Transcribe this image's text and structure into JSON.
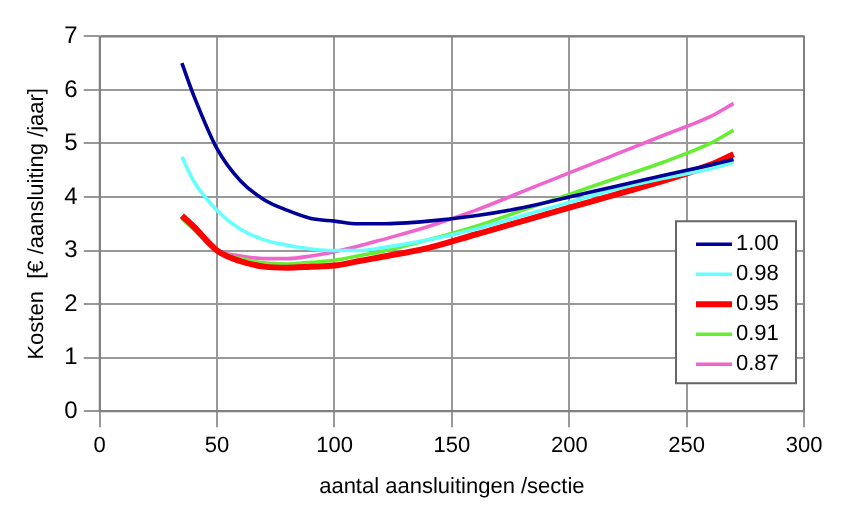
{
  "chart_data": {
    "type": "line",
    "xlabel": "aantal aansluitingen /sectie",
    "ylabel": "Kosten  [€ /aansluiting /jaar]",
    "x": [
      35,
      40,
      50,
      60,
      70,
      80,
      90,
      100,
      110,
      120,
      140,
      160,
      180,
      200,
      220,
      240,
      260,
      270
    ],
    "series": [
      {
        "name": "1.00",
        "color": "#000099",
        "values": [
          6.5,
          5.9,
          4.9,
          4.3,
          3.95,
          3.75,
          3.6,
          3.55,
          3.5,
          3.5,
          3.55,
          3.65,
          3.8,
          4.0,
          4.2,
          4.4,
          4.6,
          4.7
        ]
      },
      {
        "name": "0.98",
        "color": "#66ffff",
        "values": [
          4.75,
          4.3,
          3.75,
          3.4,
          3.2,
          3.1,
          3.03,
          3.0,
          3.0,
          3.05,
          3.2,
          3.4,
          3.65,
          3.9,
          4.15,
          4.35,
          4.53,
          4.65
        ]
      },
      {
        "name": "0.95",
        "color": "#ff0000",
        "values": [
          3.65,
          3.45,
          3.0,
          2.8,
          2.7,
          2.68,
          2.7,
          2.72,
          2.8,
          2.88,
          3.05,
          3.3,
          3.55,
          3.8,
          4.05,
          4.3,
          4.6,
          4.8
        ]
      },
      {
        "name": "0.91",
        "color": "#66ee33",
        "values": [
          3.6,
          3.4,
          3.0,
          2.85,
          2.77,
          2.75,
          2.78,
          2.82,
          2.9,
          2.98,
          3.2,
          3.45,
          3.75,
          4.05,
          4.35,
          4.65,
          5.0,
          5.25
        ]
      },
      {
        "name": "0.87",
        "color": "#ee66cc",
        "values": [
          3.6,
          3.4,
          3.0,
          2.9,
          2.85,
          2.85,
          2.9,
          2.98,
          3.08,
          3.2,
          3.45,
          3.75,
          4.1,
          4.45,
          4.8,
          5.15,
          5.5,
          5.75
        ]
      }
    ],
    "xlim": [
      0,
      300
    ],
    "xticks": [
      0,
      50,
      100,
      150,
      200,
      250,
      300
    ],
    "ylim": [
      0,
      7
    ],
    "yticks": [
      0,
      1,
      2,
      3,
      4,
      5,
      6,
      7
    ],
    "grid": true,
    "legend": "right",
    "marker": "none",
    "line_style": "solid"
  }
}
